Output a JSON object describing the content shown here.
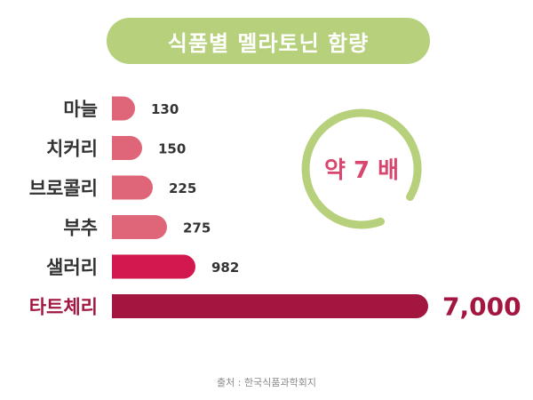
{
  "title": "식품별 멜라토닌 함량",
  "annotation": {
    "text": "약 7 배",
    "ring_color": "#b7d07c",
    "text_color": "#d8476e"
  },
  "source": "출처 : 한국식품과학회지",
  "chart_data": {
    "type": "bar",
    "orientation": "horizontal",
    "title": "식품별 멜라토닌 함량",
    "categories": [
      "마늘",
      "치커리",
      "브로콜리",
      "부추",
      "샐러리",
      "타트체리"
    ],
    "values": [
      130,
      150,
      225,
      275,
      982,
      7000
    ],
    "value_labels": [
      "130",
      "150",
      "225",
      "275",
      "982",
      "7,000"
    ],
    "highlight_index": 5,
    "bar_colors": [
      "#df6579",
      "#df6579",
      "#df6579",
      "#df6579",
      "#d2184e",
      "#a3163f"
    ],
    "grid": false,
    "legend": "none"
  }
}
